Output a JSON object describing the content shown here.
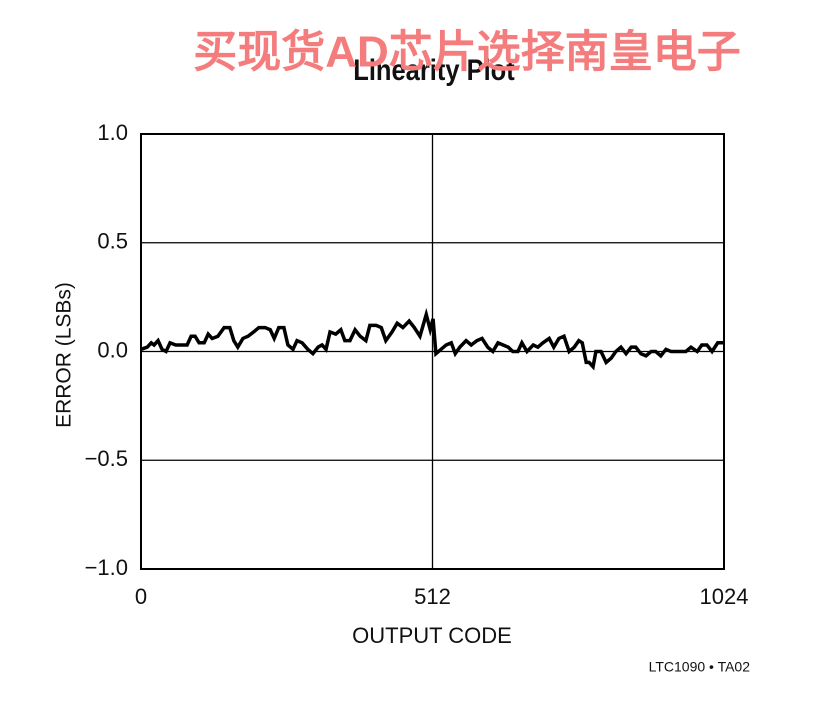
{
  "chart_data": {
    "type": "line",
    "title": "Linearity Plot",
    "watermark": "买现货AD芯片选择南皇电子",
    "xlabel": "OUTPUT CODE",
    "ylabel": "ERROR (LSBs)",
    "note": "LTC1090 • TA02",
    "x": [
      0,
      11,
      18,
      23,
      30,
      37,
      44,
      51,
      61,
      72,
      81,
      88,
      95,
      102,
      111,
      118,
      125,
      135,
      146,
      156,
      163,
      170,
      179,
      188,
      198,
      207,
      218,
      227,
      234,
      242,
      251,
      258,
      267,
      274,
      283,
      293,
      302,
      311,
      318,
      325,
      332,
      342,
      351,
      358,
      367,
      376,
      385,
      395,
      402,
      413,
      422,
      430,
      441,
      450,
      460,
      471,
      480,
      490,
      501,
      508,
      513,
      518,
      527,
      536,
      545,
      552,
      560,
      571,
      580,
      590,
      599,
      609,
      618,
      627,
      636,
      645,
      653,
      662,
      669,
      678,
      689,
      697,
      706,
      717,
      725,
      734,
      743,
      752,
      761,
      769,
      775,
      782,
      787,
      794,
      799,
      808,
      817,
      826,
      834,
      843,
      852,
      861,
      869,
      878,
      887,
      896,
      904,
      913,
      922,
      931,
      940,
      948,
      957,
      966,
      977,
      985,
      994,
      1003,
      1013,
      1024
    ],
    "values": [
      0.01,
      0.02,
      0.04,
      0.03,
      0.05,
      0.01,
      0,
      0.04,
      0.03,
      0.03,
      0.03,
      0.07,
      0.07,
      0.04,
      0.04,
      0.08,
      0.06,
      0.07,
      0.11,
      0.11,
      0.05,
      0.02,
      0.06,
      0.07,
      0.09,
      0.11,
      0.11,
      0.1,
      0.06,
      0.11,
      0.11,
      0.03,
      0.01,
      0.05,
      0.04,
      0.01,
      -0.01,
      0.02,
      0.03,
      0.01,
      0.09,
      0.08,
      0.1,
      0.05,
      0.05,
      0.1,
      0.07,
      0.05,
      0.12,
      0.12,
      0.11,
      0.05,
      0.09,
      0.13,
      0.11,
      0.14,
      0.11,
      0.07,
      0.17,
      0.1,
      0.15,
      -0.01,
      0.01,
      0.03,
      0.04,
      -0.01,
      0.02,
      0.05,
      0.03,
      0.05,
      0.06,
      0.02,
      0,
      0.04,
      0.03,
      0.02,
      0,
      0,
      0.04,
      0,
      0.03,
      0.02,
      0.04,
      0.06,
      0.02,
      0.06,
      0.07,
      0,
      0.02,
      0.05,
      0.04,
      -0.05,
      -0.05,
      -0.07,
      0,
      0,
      -0.05,
      -0.03,
      0,
      0.02,
      -0.01,
      0.02,
      0.02,
      -0.01,
      -0.02,
      0,
      0,
      -0.02,
      0.01,
      0,
      0,
      0,
      0,
      0.02,
      0,
      0.03,
      0.03,
      0,
      0.04,
      0.04
    ],
    "color": "#000000",
    "xlim": [
      0,
      1024
    ],
    "xticks": [
      0,
      512,
      1024
    ],
    "ylim": [
      -1,
      1
    ],
    "yticks": [
      {
        "value": 1,
        "label": "1.0"
      },
      {
        "value": 0.5,
        "label": "0.5"
      },
      {
        "value": 0,
        "label": "0.0"
      },
      {
        "value": -0.5,
        "label": "−0.5"
      },
      {
        "value": -1,
        "label": "−1.0"
      }
    ],
    "grid": true
  }
}
